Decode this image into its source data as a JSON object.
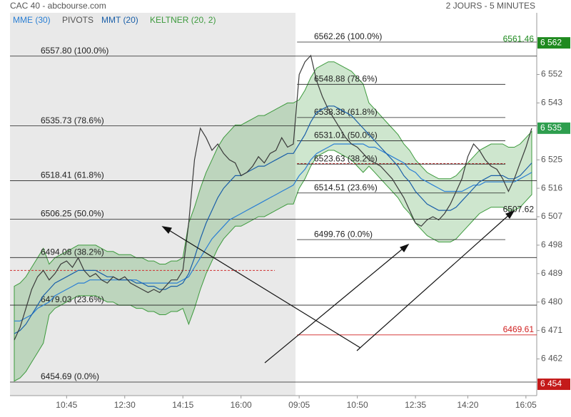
{
  "chart_data": {
    "type": "line",
    "title": "CAC 40 - abcbourse.com",
    "subtitle": "2 JOURS - 5 MINUTES",
    "pivots_label": "PIVOTS",
    "categories": [
      null,
      null,
      null,
      null,
      null,
      null,
      null,
      null,
      null,
      "10:45",
      null,
      null,
      null,
      null,
      null,
      null,
      null,
      null,
      null,
      "12:30",
      null,
      null,
      null,
      null,
      null,
      null,
      null,
      null,
      null,
      "14:15",
      null,
      null,
      null,
      null,
      null,
      null,
      null,
      null,
      null,
      "16:00",
      null,
      null,
      null,
      null,
      null,
      null,
      null,
      null,
      null,
      "09:05",
      null,
      null,
      null,
      null,
      null,
      null,
      null,
      null,
      null,
      "10:50",
      null,
      null,
      null,
      null,
      null,
      null,
      null,
      null,
      null,
      "12:35",
      null,
      null,
      null,
      null,
      null,
      null,
      null,
      null,
      "14:20",
      null,
      null,
      null,
      null,
      null,
      null,
      null,
      null,
      null,
      "16:05",
      null
    ],
    "values": [
      6468,
      6472,
      6478,
      6484,
      6488,
      6490,
      6487,
      6489,
      6492,
      6493,
      6491,
      6494,
      6490,
      6488,
      6489,
      6487,
      6486,
      6488,
      6487,
      6488,
      6486,
      6485,
      6484,
      6483,
      6484,
      6483,
      6485,
      6487,
      6487,
      6490,
      6505,
      6525,
      6535,
      6532,
      6528,
      6530,
      6527,
      6525,
      6524,
      6520,
      6521,
      6523,
      6526,
      6524,
      6527,
      6528,
      6532,
      6529,
      6530,
      6552,
      6556,
      6558,
      6550,
      6545,
      6541,
      6538,
      6535,
      6532,
      6530,
      6529,
      6527,
      6525,
      6524,
      6523,
      6521,
      6519,
      6516,
      6513,
      6509,
      6505,
      6504,
      6506,
      6507,
      6506,
      6508,
      6511,
      6515,
      6519,
      6526,
      6530,
      6528,
      6525,
      6523,
      6522,
      6519,
      6515,
      6519,
      6524,
      6529,
      6535
    ],
    "color": "#3a3a3a",
    "series": [
      {
        "name": "MME (30)",
        "color": "#2a7fd4",
        "values": [
          6474,
          6474,
          6475,
          6476,
          6478,
          6479,
          6480,
          6482,
          6483,
          6484,
          6485,
          6486,
          6486,
          6487,
          6487,
          6487,
          6487,
          6487,
          6487,
          6487,
          6487,
          6487,
          6486,
          6486,
          6486,
          6486,
          6486,
          6486,
          6486,
          6487,
          6488,
          6491,
          6494,
          6497,
          6500,
          6502,
          6504,
          6506,
          6507,
          6508,
          6509,
          6510,
          6511,
          6512,
          6513,
          6514,
          6515,
          6516,
          6517,
          6520,
          6522,
          6525,
          6527,
          6528,
          6529,
          6530,
          6530,
          6530,
          6530,
          6530,
          6530,
          6529,
          6529,
          6528,
          6527,
          6526,
          6525,
          6524,
          6522,
          6521,
          6519,
          6518,
          6517,
          6516,
          6515,
          6515,
          6515,
          6515,
          6516,
          6517,
          6517,
          6518,
          6518,
          6518,
          6518,
          6518,
          6518,
          6519,
          6520,
          6521
        ]
      },
      {
        "name": "MMT (20)",
        "color": "#1a5fa8",
        "values": [
          6470,
          6471,
          6473,
          6476,
          6479,
          6482,
          6484,
          6486,
          6487,
          6488,
          6489,
          6490,
          6490,
          6490,
          6490,
          6489,
          6488,
          6488,
          6487,
          6487,
          6487,
          6486,
          6486,
          6485,
          6485,
          6484,
          6484,
          6485,
          6485,
          6486,
          6489,
          6494,
          6500,
          6505,
          6509,
          6513,
          6516,
          6518,
          6520,
          6520,
          6521,
          6522,
          6523,
          6523,
          6524,
          6525,
          6526,
          6527,
          6527,
          6530,
          6533,
          6537,
          6540,
          6541,
          6542,
          6542,
          6541,
          6540,
          6539,
          6537,
          6535,
          6533,
          6531,
          6529,
          6527,
          6525,
          6523,
          6520,
          6518,
          6515,
          6513,
          6511,
          6510,
          6509,
          6509,
          6509,
          6510,
          6512,
          6514,
          6516,
          6518,
          6519,
          6520,
          6520,
          6520,
          6519,
          6519,
          6520,
          6522,
          6524
        ]
      },
      {
        "name": "KELTNER (20, 2)",
        "color": "#3d9a3d",
        "upper": [
          6485,
          6486,
          6488,
          6491,
          6494,
          6497,
          6492,
          6494,
          6495,
          6496,
          6497,
          6498,
          6498,
          6498,
          6498,
          6497,
          6496,
          6496,
          6495,
          6495,
          6495,
          6494,
          6494,
          6493,
          6493,
          6492,
          6492,
          6493,
          6493,
          6494,
          6505,
          6510,
          6516,
          6521,
          6525,
          6529,
          6532,
          6534,
          6536,
          6536,
          6537,
          6538,
          6539,
          6539,
          6540,
          6541,
          6542,
          6543,
          6543,
          6544,
          6547,
          6551,
          6554,
          6555,
          6556,
          6556,
          6555,
          6554,
          6553,
          6551,
          6549,
          6543,
          6541,
          6539,
          6537,
          6535,
          6533,
          6530,
          6528,
          6525,
          6523,
          6521,
          6520,
          6519,
          6519,
          6519,
          6520,
          6522,
          6524,
          6526,
          6528,
          6529,
          6530,
          6530,
          6530,
          6529,
          6529,
          6530,
          6532,
          6534
        ],
        "lower": [
          6455,
          6456,
          6458,
          6461,
          6464,
          6467,
          6476,
          6478,
          6479,
          6480,
          6481,
          6482,
          6482,
          6482,
          6482,
          6481,
          6480,
          6480,
          6479,
          6479,
          6479,
          6478,
          6478,
          6477,
          6477,
          6476,
          6476,
          6477,
          6477,
          6478,
          6473,
          6478,
          6484,
          6489,
          6493,
          6497,
          6500,
          6502,
          6504,
          6504,
          6505,
          6506,
          6507,
          6507,
          6508,
          6509,
          6510,
          6511,
          6511,
          6516,
          6519,
          6523,
          6526,
          6527,
          6528,
          6528,
          6527,
          6526,
          6525,
          6523,
          6521,
          6523,
          6521,
          6519,
          6517,
          6515,
          6513,
          6510,
          6508,
          6505,
          6503,
          6501,
          6500,
          6499,
          6499,
          6499,
          6500,
          6502,
          6504,
          6506,
          6508,
          6509,
          6510,
          6510,
          6510,
          6509,
          6509,
          6510,
          6512,
          6514
        ]
      }
    ],
    "ylim": [
      6450.4,
      6571.5
    ],
    "yticks": [
      {
        "value": 6462,
        "label": "6 462"
      },
      {
        "value": 6471,
        "label": "6 471"
      },
      {
        "value": 6480,
        "label": "6 480"
      },
      {
        "value": 6489,
        "label": "6 489"
      },
      {
        "value": 6498,
        "label": "6 498"
      },
      {
        "value": 6507,
        "label": "6 507"
      },
      {
        "value": 6516,
        "label": "6 516"
      },
      {
        "value": 6525,
        "label": "6 525"
      },
      {
        "value": 6543,
        "label": "6 543"
      },
      {
        "value": 6552,
        "label": "6 552"
      }
    ],
    "price_badges": [
      {
        "value": 6562,
        "label": "6 562",
        "color": "#1f8a1f"
      },
      {
        "value": 6535,
        "label": "6 535",
        "color": "#2e9e4e"
      },
      {
        "value": 6454,
        "label": "6 454",
        "color": "#c41a1a"
      }
    ],
    "fib_day1": [
      {
        "value": 6557.8,
        "label": "6557.80  (100.0%)"
      },
      {
        "value": 6535.73,
        "label": "6535.73  (78.6%)"
      },
      {
        "value": 6518.41,
        "label": "6518.41  (61.8%)"
      },
      {
        "value": 6506.25,
        "label": "6506.25  (50.0%)"
      },
      {
        "value": 6494.08,
        "label": "6494.08  (38.2%)"
      },
      {
        "value": 6479.03,
        "label": "6479.03  (23.6%)"
      },
      {
        "value": 6454.69,
        "label": "6454.69  (0.0%)"
      }
    ],
    "fib_day2": [
      {
        "value": 6562.26,
        "label": "6562.26  (100.0%)"
      },
      {
        "value": 6548.88,
        "label": "6548.88  (78.6%)"
      },
      {
        "value": 6538.38,
        "label": "6538.38  (61.8%)"
      },
      {
        "value": 6531.01,
        "label": "6531.01  (50.0%)"
      },
      {
        "value": 6523.63,
        "label": "6523.63  (38.2%)"
      },
      {
        "value": 6514.51,
        "label": "6514.51  (23.6%)"
      },
      {
        "value": 6499.76,
        "label": "6499.76  (0.0%)"
      }
    ],
    "pivots": [
      {
        "value": 6490,
        "color": "#d03030"
      },
      {
        "value": 6523.8,
        "color": "#a02020"
      }
    ],
    "annotations": [
      {
        "value": 6561.46,
        "color": "#1f8a1f"
      },
      {
        "value": 6507.62,
        "color": "#222222"
      },
      {
        "value": 6469.61,
        "color": "#d02020"
      }
    ]
  }
}
